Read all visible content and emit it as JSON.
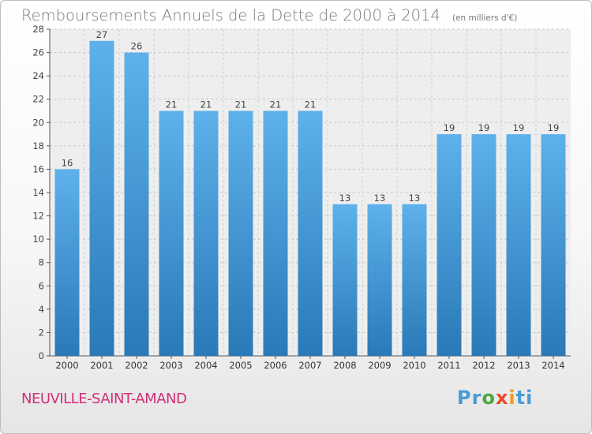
{
  "header": {
    "title": "Remboursements Annuels de la Dette de 2000 à 2014",
    "subtitle": "(en milliers d'€)"
  },
  "footer": {
    "commune": "NEUVILLE-SAINT-AMAND",
    "logo": [
      "Pr",
      "o",
      "x",
      "i",
      "ti"
    ]
  },
  "colors": {
    "bar_top": "#5eb1ea",
    "bar_bottom": "#2a79b8",
    "commune": "#d12f78"
  },
  "chart_data": {
    "type": "bar",
    "title": "Remboursements Annuels de la Dette de 2000 à 2014",
    "subtitle": "(en milliers d'€)",
    "categories": [
      "2000",
      "2001",
      "2002",
      "2003",
      "2004",
      "2005",
      "2006",
      "2007",
      "2008",
      "2009",
      "2010",
      "2011",
      "2012",
      "2013",
      "2014"
    ],
    "values": [
      16,
      27,
      26,
      21,
      21,
      21,
      21,
      21,
      13,
      13,
      13,
      19,
      19,
      19,
      19
    ],
    "ylim": [
      0,
      28
    ],
    "yticks": [
      0,
      2,
      4,
      6,
      8,
      10,
      12,
      14,
      16,
      18,
      20,
      22,
      24,
      26,
      28
    ],
    "grid": true,
    "data_labels": true
  }
}
